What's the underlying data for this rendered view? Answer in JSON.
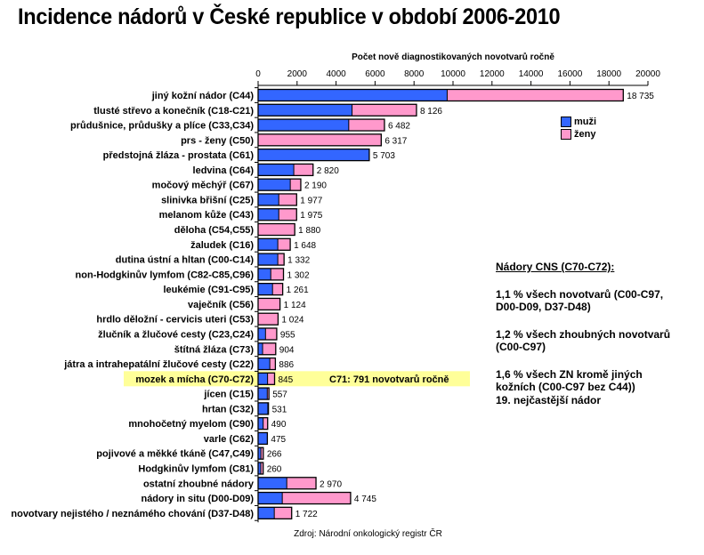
{
  "title": "Incidence nádorů v České republice v období 2006-2010",
  "source": "Zdroj: Národní onkologický registr ČR",
  "highlight_annotation": "C71: 791 novotvarů ročně",
  "note": {
    "heading": "Nádory CNS (C70-C72):",
    "paragraphs": [
      [
        "1,1 % všech novotvarů (C00-C97,",
        "D00-D09, D37-D48)"
      ],
      [
        "1,2 % všech zhoubných novotvarů",
        "(C00-C97)"
      ],
      [
        "1,6 % všech ZN kromě jiných",
        "kožních  (C00-C97 bez C44))",
        "19. nejčastější nádor"
      ]
    ]
  },
  "colors": {
    "muzi": "#3366ff",
    "zeny": "#ff99cc",
    "highlight": "#ffff99"
  },
  "chart_data": {
    "type": "bar",
    "orientation": "horizontal",
    "stacked": true,
    "title": "Incidence nádorů v České republice v období 2006-2010",
    "xlabel": "Počet nově diagnostikovaných novotvarů ročně",
    "ylabel": "",
    "xlim": [
      0,
      20000
    ],
    "xticks": [
      0,
      2000,
      4000,
      6000,
      8000,
      10000,
      12000,
      14000,
      16000,
      18000,
      20000
    ],
    "xtick_labels": [
      "0",
      "2000",
      "4000",
      "6000",
      "8000",
      "10000",
      "12000",
      "14000",
      "16000",
      "18000",
      "20000"
    ],
    "legend": {
      "position": "right",
      "entries": [
        "muži",
        "ženy"
      ]
    },
    "highlighted_category": "mozek a mícha (C70-C72)",
    "categories": [
      "jiný kožní nádor (C44)",
      "tlusté střevo a konečník (C18-C21)",
      "průdušnice, průdušky a plíce (C33,C34)",
      "prs - ženy (C50)",
      "předstojná žláza - prostata (C61)",
      "ledvina (C64)",
      "močový měchýř (C67)",
      "slinivka břišní (C25)",
      "melanom kůže (C43)",
      "děloha (C54,C55)",
      "žaludek (C16)",
      "dutina ústní a hltan (C00-C14)",
      "non-Hodgkinův lymfom (C82-C85,C96)",
      "leukémie (C91-C95)",
      "vaječník (C56)",
      "hrdlo děložní - cervicis uteri (C53)",
      "žlučník a žlučové cesty (C23,C24)",
      "štítná žláza (C73)",
      "játra a intrahepatální žlučové cesty (C22)",
      "mozek a mícha (C70-C72)",
      "jícen (C15)",
      "hrtan (C32)",
      "mnohočetný myelom (C90)",
      "varle (C62)",
      "pojivové a měkké tkáně (C47,C49)",
      "Hodgkinův lymfom (C81)",
      "ostatní zhoubné nádory",
      "nádory in situ (D00-D09)",
      "novotvary nejistého / neznámého chování (D37-D48)"
    ],
    "totals": [
      18735,
      8126,
      6482,
      6317,
      5703,
      2820,
      2190,
      1977,
      1975,
      1880,
      1648,
      1332,
      1302,
      1261,
      1124,
      1024,
      955,
      904,
      886,
      845,
      557,
      531,
      490,
      475,
      266,
      260,
      2970,
      4745,
      1722
    ],
    "total_labels": [
      "18 735",
      "8 126",
      "6 482",
      "6 317",
      "5 703",
      "2 820",
      "2 190",
      "1 977",
      "1 975",
      "1 880",
      "1 648",
      "1 332",
      "1 302",
      "1 261",
      "1 124",
      "1 024",
      "955",
      "904",
      "886",
      "845",
      "557",
      "531",
      "490",
      "475",
      "266",
      "260",
      "2 970",
      "4 745",
      "1 722"
    ],
    "series": [
      {
        "name": "muži",
        "color": "#3366ff",
        "values": [
          9700,
          4820,
          4650,
          0,
          5703,
          1830,
          1650,
          1060,
          1060,
          0,
          1010,
          1010,
          650,
          740,
          0,
          0,
          380,
          230,
          600,
          485,
          470,
          500,
          260,
          475,
          145,
          140,
          1470,
          1240,
          830
        ]
      },
      {
        "name": "ženy",
        "color": "#ff99cc",
        "values": [
          9035,
          3306,
          1832,
          6317,
          0,
          990,
          540,
          917,
          915,
          1880,
          638,
          322,
          652,
          521,
          1124,
          1024,
          575,
          674,
          286,
          360,
          87,
          31,
          230,
          0,
          121,
          120,
          1500,
          3505,
          892
        ]
      }
    ]
  }
}
